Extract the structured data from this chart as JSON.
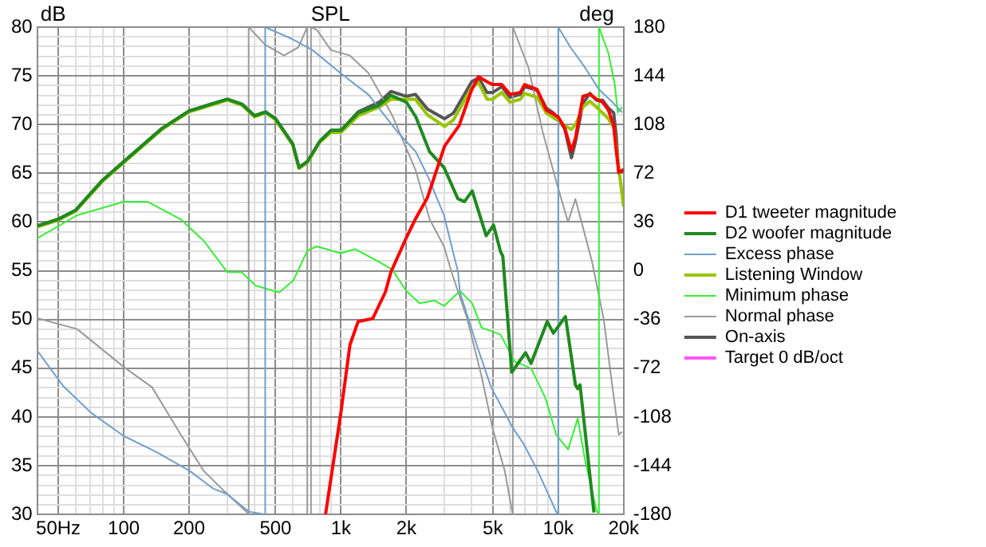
{
  "chart_data": {
    "type": "line",
    "title": "SPL",
    "ylabel": "dB",
    "y2label": "deg",
    "xlim": [
      40,
      20000
    ],
    "xticks": [
      {
        "value": 50,
        "label": "50Hz"
      },
      {
        "value": 60,
        "label": null
      },
      {
        "value": 70,
        "label": null
      },
      {
        "value": 80,
        "label": null
      },
      {
        "value": 90,
        "label": null
      },
      100,
      200,
      {
        "value": 300,
        "label": null
      },
      {
        "value": 400,
        "label": null
      },
      500,
      {
        "value": 600,
        "label": null
      },
      {
        "value": 700,
        "label": null
      },
      {
        "value": 800,
        "label": null
      },
      {
        "value": 900,
        "label": null
      },
      {
        "value": 1000,
        "label": "1k"
      },
      {
        "value": 2000,
        "label": "2k"
      },
      {
        "value": 3000,
        "label": null
      },
      {
        "value": 4000,
        "label": null
      },
      {
        "value": 5000,
        "label": "5k"
      },
      {
        "value": 6000,
        "label": null
      },
      {
        "value": 7000,
        "label": null
      },
      {
        "value": 8000,
        "label": null
      },
      {
        "value": 9000,
        "label": null
      },
      {
        "value": 10000,
        "label": "10k"
      },
      {
        "value": 20000,
        "label": "20k"
      }
    ],
    "ylim": [
      30,
      80
    ],
    "yticks": [
      30,
      {
        "value": 31,
        "label": null
      },
      {
        "value": 32,
        "label": null
      },
      {
        "value": 33,
        "label": null
      },
      {
        "value": 34,
        "label": null
      },
      35,
      {
        "value": 36,
        "label": null
      },
      {
        "value": 37,
        "label": null
      },
      {
        "value": 38,
        "label": null
      },
      {
        "value": 39,
        "label": null
      },
      40,
      {
        "value": 41,
        "label": null
      },
      {
        "value": 42,
        "label": null
      },
      {
        "value": 43,
        "label": null
      },
      {
        "value": 44,
        "label": null
      },
      45,
      {
        "value": 46,
        "label": null
      },
      {
        "value": 47,
        "label": null
      },
      {
        "value": 48,
        "label": null
      },
      {
        "value": 49,
        "label": null
      },
      50,
      {
        "value": 51,
        "label": null
      },
      {
        "value": 52,
        "label": null
      },
      {
        "value": 53,
        "label": null
      },
      {
        "value": 54,
        "label": null
      },
      55,
      {
        "value": 56,
        "label": null
      },
      {
        "value": 57,
        "label": null
      },
      {
        "value": 58,
        "label": null
      },
      {
        "value": 59,
        "label": null
      },
      60,
      {
        "value": 61,
        "label": null
      },
      {
        "value": 62,
        "label": null
      },
      {
        "value": 63,
        "label": null
      },
      {
        "value": 64,
        "label": null
      },
      65,
      {
        "value": 66,
        "label": null
      },
      {
        "value": 67,
        "label": null
      },
      {
        "value": 68,
        "label": null
      },
      {
        "value": 69,
        "label": null
      },
      70,
      {
        "value": 71,
        "label": null
      },
      {
        "value": 72,
        "label": null
      },
      {
        "value": 73,
        "label": null
      },
      {
        "value": 74,
        "label": null
      },
      75,
      {
        "value": 76,
        "label": null
      },
      {
        "value": 77,
        "label": null
      },
      {
        "value": 78,
        "label": null
      },
      {
        "value": 79,
        "label": null
      },
      80
    ],
    "y2lim": [
      -180,
      180
    ],
    "y2ticks": [
      -180,
      -144,
      -108,
      -72,
      -36,
      0,
      36,
      72,
      108,
      144,
      180
    ],
    "log": "x",
    "grid": true,
    "legend": "right",
    "marker": "none",
    "line_style": "solid",
    "series": [
      {
        "name": "D1 tweeter magnitude",
        "color": "#ff0000",
        "x": [
          849,
          1000,
          1100,
          1200,
          1400,
          1600,
          1700,
          2000,
          2200,
          2500,
          3000,
          3500,
          4000,
          4300,
          4700,
          5000,
          5500,
          6000,
          6700,
          7000,
          8000,
          8800,
          10000,
          10700,
          11500,
          12000,
          13000,
          14000,
          15000,
          16000,
          17000,
          18000,
          18500,
          19000,
          20000
        ],
        "values": [
          30,
          40.5,
          47.4,
          49.8,
          50.1,
          52.8,
          54.9,
          58.4,
          60.3,
          62.5,
          67.8,
          69.9,
          73.6,
          74.9,
          74.4,
          74.1,
          74.1,
          73.1,
          73.3,
          74.1,
          73.6,
          71.5,
          70.8,
          69.7,
          67.3,
          68.6,
          72.9,
          73.1,
          72.6,
          72.3,
          71.5,
          69.9,
          67.3,
          65.1,
          65.4
        ]
      },
      {
        "name": "D2 woofer magnitude",
        "color": "#1f8a1f",
        "x": [
          40,
          50,
          60,
          80,
          100,
          150,
          200,
          300,
          350,
          400,
          450,
          500,
          600,
          641,
          700,
          800,
          900,
          1000,
          1200,
          1500,
          1700,
          2000,
          2210,
          2560,
          2980,
          3450,
          3700,
          4020,
          4230,
          4660,
          5040,
          5420,
          5560,
          6110,
          7080,
          7500,
          8900,
          9500,
          10800,
          12000,
          12300,
          12600,
          14600
        ],
        "values": [
          59.6,
          60.3,
          61.2,
          64.3,
          66.2,
          69.6,
          71.4,
          72.6,
          72.1,
          70.9,
          71.3,
          70.6,
          68,
          65.6,
          66.2,
          68.3,
          69.4,
          69.4,
          71.2,
          72,
          73,
          72.3,
          70.8,
          67.2,
          65.6,
          62.4,
          62.1,
          63.2,
          61.6,
          58.6,
          59.7,
          57,
          56.5,
          44.6,
          46.6,
          45.5,
          49.8,
          48.6,
          50.3,
          43.3,
          42.9,
          43.3,
          30.2
        ]
      },
      {
        "name": "Excess phase",
        "color": "#6f9fcf",
        "axis": "y2",
        "x": [
          40,
          52.6,
          70.9,
          100,
          142,
          202,
          259,
          300,
          377,
          448,
          448,
          600,
          740,
          996,
          1340,
          1810,
          2210,
          2540,
          2980,
          3460,
          3530,
          4220,
          4910,
          5680,
          6120,
          6940,
          8060,
          9790,
          10000,
          10000,
          11400,
          13300,
          15400,
          17900,
          19700
        ],
        "values": [
          -59,
          -85,
          -105,
          -122,
          -134,
          -148,
          -161,
          -165,
          -178,
          -180,
          180,
          171,
          163,
          146,
          130,
          103,
          88,
          68,
          41,
          -1,
          -16,
          -55,
          -86,
          -105,
          -115,
          -128,
          -148,
          -178,
          -180,
          180,
          165,
          150,
          134,
          124,
          117
        ]
      },
      {
        "name": "Listening Window",
        "color": "#99c400",
        "x": [
          40,
          50,
          60,
          80,
          100,
          150,
          200,
          300,
          350,
          400,
          450,
          500,
          600,
          641,
          700,
          800,
          900,
          1000,
          1200,
          1500,
          1700,
          2000,
          2200,
          2500,
          3000,
          3300,
          4000,
          4300,
          4700,
          5000,
          5500,
          6000,
          6700,
          7000,
          8000,
          8800,
          9500,
          10000,
          10700,
          11500,
          12000,
          13000,
          14000,
          15000,
          16000,
          17000,
          18000,
          18500,
          19000,
          20000
        ],
        "values": [
          59.5,
          60.2,
          61.1,
          64.2,
          66.1,
          69.5,
          71.3,
          72.5,
          72,
          70.8,
          71.2,
          70.5,
          67.9,
          65.5,
          66.1,
          68.2,
          69.2,
          69.2,
          70.9,
          71.8,
          72.6,
          72.6,
          72.6,
          71,
          69.8,
          70.5,
          73.8,
          74.3,
          72.6,
          72.6,
          73.3,
          72.3,
          72.6,
          73.2,
          72.8,
          71.2,
          70.7,
          70.4,
          69.9,
          69.5,
          70,
          71.8,
          72.4,
          71.8,
          71.2,
          70.6,
          69.7,
          67.8,
          65.5,
          61.6
        ]
      },
      {
        "name": "Minimum phase",
        "color": "#33f033",
        "axis": "y2",
        "x": [
          40,
          61,
          100,
          129,
          183,
          234,
          300,
          348,
          405,
          520,
          605,
          700,
          774,
          996,
          1160,
          1480,
          1720,
          2000,
          2300,
          2690,
          2980,
          3530,
          4020,
          4440,
          5420,
          6300,
          7500,
          8730,
          9790,
          11100,
          12300,
          13300,
          15000,
          15400,
          15400,
          17000,
          18200,
          18800,
          19700
        ],
        "values": [
          24,
          41,
          51,
          51,
          38,
          22,
          -1,
          -1,
          -11,
          -16,
          -7,
          15,
          18,
          13,
          16,
          7,
          1,
          -15,
          -24,
          -22,
          -26,
          -15,
          -24,
          -42,
          -47,
          -67,
          -72,
          -94,
          -121,
          -132,
          -109,
          -140,
          -177,
          -180,
          180,
          161,
          138,
          117,
          121
        ]
      },
      {
        "name": "Normal phase",
        "color": "#9a9a9a",
        "axis": "y2",
        "x": [
          40,
          61,
          100,
          135,
          183,
          234,
          300,
          367,
          376,
          376,
          448,
          547,
          636,
          700,
          700,
          728,
          728,
          774,
          900,
          1100,
          1340,
          1720,
          2210,
          2560,
          2980,
          3230,
          3820,
          4440,
          5000,
          5680,
          6120,
          6180,
          6180,
          7300,
          8470,
          9830,
          11100,
          12000,
          12900,
          14300,
          16200,
          17900,
          19000,
          19700
        ],
        "values": [
          -35,
          -43,
          -71,
          -86,
          -121,
          -148,
          -165,
          -178,
          -180,
          180,
          167,
          159,
          165,
          180,
          -180,
          -180,
          180,
          178,
          163,
          159,
          146,
          115,
          74,
          38,
          18,
          -1,
          -36,
          -78,
          -117,
          -148,
          -177,
          -180,
          180,
          150,
          103,
          65,
          36,
          53,
          34,
          7,
          -36,
          -90,
          -121,
          -119
        ]
      },
      {
        "name": "On-axis",
        "color": "#555555",
        "x": [
          40,
          50,
          60,
          80,
          100,
          150,
          200,
          300,
          350,
          400,
          450,
          500,
          600,
          641,
          700,
          800,
          900,
          1000,
          1200,
          1500,
          1700,
          2000,
          2200,
          2500,
          3000,
          3300,
          4000,
          4300,
          4700,
          5000,
          5500,
          6000,
          6700,
          7000,
          8000,
          8800,
          9500,
          10000,
          10700,
          11500,
          12000,
          13000,
          14000,
          15000,
          16000,
          17000,
          18000,
          18500,
          19000,
          20000
        ],
        "values": [
          59.6,
          60.3,
          61.2,
          64.3,
          66.2,
          69.6,
          71.4,
          72.6,
          72.1,
          70.9,
          71.3,
          70.6,
          68,
          65.6,
          66.2,
          68.3,
          69.4,
          69.4,
          71.3,
          72.3,
          73.4,
          72.9,
          73.1,
          71.6,
          70.6,
          71.2,
          74.4,
          74.8,
          73.3,
          73.3,
          73.9,
          72.8,
          73.1,
          73.9,
          73.5,
          71.7,
          71.2,
          70.6,
          69.6,
          66.6,
          68.2,
          72.2,
          73.2,
          72.5,
          72.5,
          71.7,
          71.2,
          68.8,
          65,
          65.3
        ]
      },
      {
        "name": "Target 0 dB/oct",
        "color": "#ff55ff"
      }
    ]
  }
}
